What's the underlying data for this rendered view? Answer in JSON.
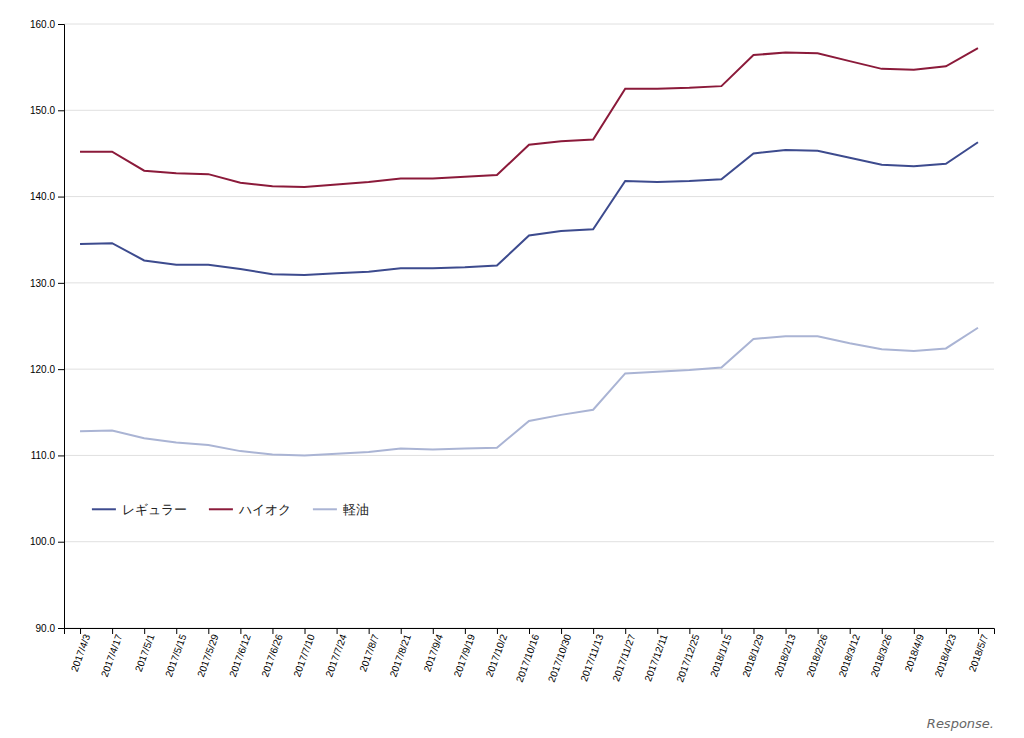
{
  "chart_data": {
    "type": "line",
    "categories": [
      "2017/4/3",
      "2017/4/17",
      "2017/5/1",
      "2017/5/15",
      "2017/5/29",
      "2017/6/12",
      "2017/6/26",
      "2017/7/10",
      "2017/7/24",
      "2017/8/7",
      "2017/8/21",
      "2017/9/4",
      "2017/9/19",
      "2017/10/2",
      "2017/10/16",
      "2017/10/30",
      "2017/11/13",
      "2017/11/27",
      "2017/12/11",
      "2017/12/25",
      "2018/1/15",
      "2018/1/29",
      "2018/2/13",
      "2018/2/26",
      "2018/3/12",
      "2018/3/26",
      "2018/4/9",
      "2018/4/23",
      "2018/5/7"
    ],
    "series": [
      {
        "name": "レギュラー",
        "color": "#3d4b8e",
        "values": [
          134.5,
          134.6,
          132.6,
          132.1,
          132.1,
          131.6,
          131.0,
          130.9,
          131.1,
          131.3,
          131.7,
          131.7,
          131.8,
          132.0,
          135.5,
          136.0,
          136.2,
          141.8,
          141.7,
          141.8,
          142.0,
          145.0,
          145.4,
          145.3,
          144.5,
          143.7,
          143.5,
          143.8,
          146.3
        ]
      },
      {
        "name": "ハイオク",
        "color": "#8b1a3a",
        "values": [
          145.2,
          145.2,
          143.0,
          142.7,
          142.6,
          141.6,
          141.2,
          141.1,
          141.4,
          141.7,
          142.1,
          142.1,
          142.3,
          142.5,
          146.0,
          146.4,
          146.6,
          152.5,
          152.5,
          152.6,
          152.8,
          156.4,
          156.7,
          156.6,
          155.7,
          154.8,
          154.7,
          155.1,
          157.2
        ]
      },
      {
        "name": "軽油",
        "color": "#aab4d4",
        "values": [
          112.8,
          112.9,
          112.0,
          111.5,
          111.2,
          110.5,
          110.1,
          110.0,
          110.2,
          110.4,
          110.8,
          110.7,
          110.8,
          110.9,
          114.0,
          114.7,
          115.3,
          119.5,
          119.7,
          119.9,
          120.2,
          123.5,
          123.8,
          123.8,
          123.0,
          122.3,
          122.1,
          122.4,
          124.8
        ]
      }
    ],
    "ylim": [
      90,
      160
    ],
    "yticks": [
      {
        "value": 90,
        "label": "90.0"
      },
      {
        "value": 100,
        "label": "100.0"
      },
      {
        "value": 110,
        "label": "110.0"
      },
      {
        "value": 120,
        "label": "120.0"
      },
      {
        "value": 130,
        "label": "130.0"
      },
      {
        "value": 140,
        "label": "140.0"
      },
      {
        "value": 150,
        "label": "150.0"
      },
      {
        "value": 160,
        "label": "160.0"
      }
    ],
    "grid": true,
    "legend": "lower left",
    "annotations": [
      "Response."
    ]
  }
}
